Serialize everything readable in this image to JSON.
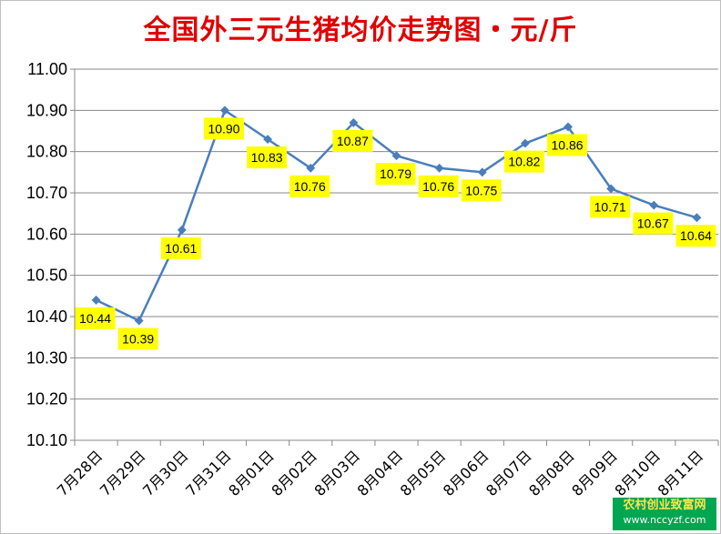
{
  "chart_data": {
    "type": "line",
    "title": "全国外三元生猪均价走势图・元/斤",
    "categories": [
      "7月28日",
      "7月29日",
      "7月30日",
      "7月31日",
      "8月01日",
      "8月02日",
      "8月03日",
      "8月04日",
      "8月05日",
      "8月06日",
      "8月07日",
      "8月08日",
      "8月09日",
      "8月10日",
      "8月11日"
    ],
    "values": [
      10.44,
      10.39,
      10.61,
      10.9,
      10.83,
      10.76,
      10.87,
      10.79,
      10.76,
      10.75,
      10.82,
      10.86,
      10.71,
      10.67,
      10.64
    ],
    "value_labels": [
      "10.44",
      "10.39",
      "10.61",
      "10.90",
      "10.83",
      "10.76",
      "10.87",
      "10.79",
      "10.76",
      "10.75",
      "10.82",
      "10.86",
      "10.71",
      "10.67",
      "10.64"
    ],
    "ylim": [
      10.1,
      11.0
    ],
    "yticks": [
      "10.10",
      "10.20",
      "10.30",
      "10.40",
      "10.50",
      "10.60",
      "10.70",
      "10.80",
      "10.90",
      "11.00"
    ],
    "grid": true,
    "legend": "none",
    "colors": {
      "line": "#4a7ebb",
      "marker": "#4a7ebb",
      "label_bg": "#ffff00",
      "title": "#e00000",
      "grid": "#888888"
    }
  },
  "watermark": {
    "line1": "农村创业致富网",
    "line2": "www.nccyzf.com"
  }
}
